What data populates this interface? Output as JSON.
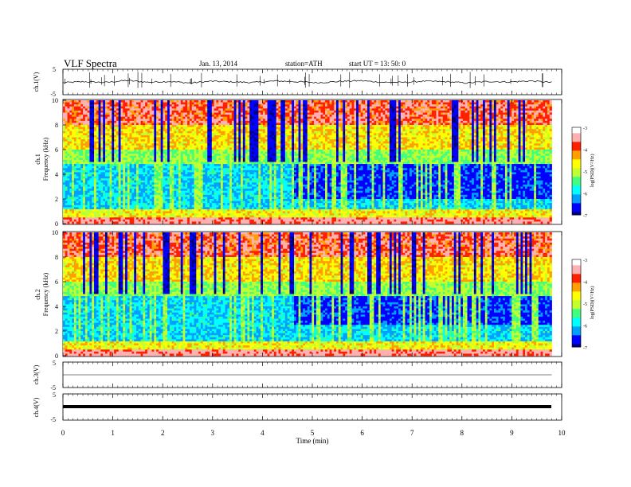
{
  "header": {
    "title": "VLF  Spectra",
    "date": "Jan. 13, 2014",
    "station": "station=ATH",
    "start": "start  UT =   13: 50: 0"
  },
  "colors": {
    "colormap": [
      "#00007f",
      "#0000ff",
      "#00a0ff",
      "#00ffff",
      "#40ff80",
      "#c0ff30",
      "#ffff00",
      "#ffa000",
      "#ff2000",
      "#ffb0b0",
      "#ffffff"
    ],
    "trace": "#000000"
  },
  "chart_data": [
    {
      "type": "line",
      "panel": "ch1",
      "ylabel": "ch.1(V)",
      "ylim": [
        -5,
        5
      ],
      "yticks": [
        "5",
        "-5"
      ],
      "xlim": [
        0,
        10
      ],
      "series": [
        {
          "values": [
            -0.3,
            0.1,
            -0.2,
            0.6,
            -0.1,
            0.2,
            -0.4,
            0.3,
            0.0,
            -0.2,
            0.4,
            0.1,
            -0.3,
            0.2,
            0.5,
            -0.1,
            -0.2,
            0.3,
            0.1,
            -0.4,
            0.2,
            0.0,
            0.4,
            -0.2
          ]
        }
      ]
    },
    {
      "type": "heatmap",
      "panel": "ch1-spectrogram",
      "ylabel": "Frequency  (kHz)",
      "channel_label": "ch.1",
      "ylim": [
        0,
        10
      ],
      "yticks": [
        "0",
        "2",
        "4",
        "6",
        "8",
        "10"
      ],
      "xlim": [
        0,
        9.8
      ],
      "colorbar": {
        "label": "log(PSD)(V²/Hz)",
        "ticks": [
          "-3",
          "-4",
          "-5",
          "-6",
          "-7"
        ],
        "range": [
          -7,
          -3
        ]
      },
      "quiet_band": {
        "t_start": 4.6,
        "t_end": 9.8,
        "f_low": 2.0,
        "f_high": 4.8
      }
    },
    {
      "type": "heatmap",
      "panel": "ch2-spectrogram",
      "ylabel": "Frequency  (kHz)",
      "channel_label": "ch.2",
      "ylim": [
        0,
        10
      ],
      "yticks": [
        "0",
        "2",
        "4",
        "6",
        "8",
        "10"
      ],
      "xlim": [
        0,
        9.8
      ],
      "colorbar": {
        "label": "log(PSD)(V²/Hz)",
        "ticks": [
          "-3",
          "-4",
          "-5",
          "-6",
          "-7"
        ],
        "range": [
          -7,
          -3
        ]
      },
      "quiet_band": {
        "t_start": 4.6,
        "t_end": 9.8,
        "f_low": 2.5,
        "f_high": 4.8
      }
    },
    {
      "type": "line",
      "panel": "ch3",
      "ylabel": "ch.3(V)",
      "ylim": [
        -5,
        5
      ],
      "yticks": [
        "5",
        "-5"
      ],
      "xlim": [
        0,
        10
      ],
      "series": [
        {
          "values": [
            0,
            0,
            0,
            0,
            0,
            0,
            0,
            0,
            0,
            0
          ]
        }
      ]
    },
    {
      "type": "line",
      "panel": "ch4",
      "ylabel": "ch.4(V)",
      "ylim": [
        -5,
        5
      ],
      "yticks": [
        "5",
        "-5"
      ],
      "xlim": [
        0,
        10
      ],
      "xlabel": "Time  (min)",
      "xticks": [
        "0",
        "1",
        "2",
        "3",
        "4",
        "5",
        "6",
        "7",
        "8",
        "9",
        "10"
      ],
      "series": [
        {
          "values": [
            0,
            0,
            0,
            0,
            0,
            0,
            0,
            0,
            0,
            0
          ]
        }
      ]
    }
  ]
}
